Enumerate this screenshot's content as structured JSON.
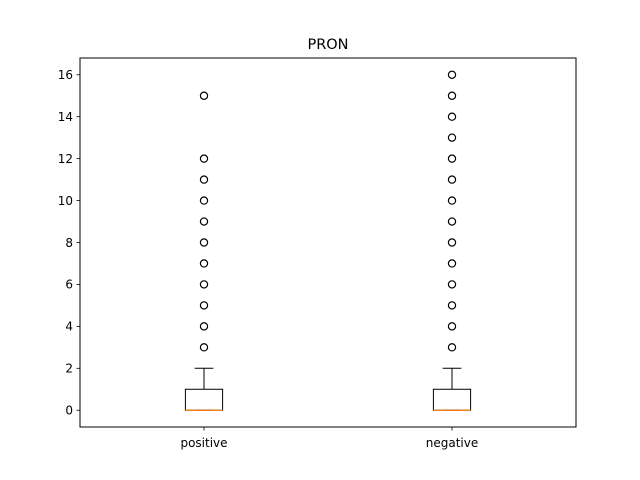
{
  "chart_data": {
    "type": "box",
    "title": "PRON",
    "xlabel": "",
    "ylabel": "",
    "ylim": [
      -0.8,
      16.8
    ],
    "yticks": [
      0,
      2,
      4,
      6,
      8,
      10,
      12,
      14,
      16
    ],
    "categories": [
      "positive",
      "negative"
    ],
    "boxes": [
      {
        "name": "positive",
        "whisker_low": 0,
        "q1": 0,
        "median": 0,
        "q3": 1,
        "whisker_high": 2,
        "outliers": [
          3,
          4,
          5,
          6,
          7,
          8,
          9,
          10,
          11,
          12,
          15
        ]
      },
      {
        "name": "negative",
        "whisker_low": 0,
        "q1": 0,
        "median": 0,
        "q3": 1,
        "whisker_high": 2,
        "outliers": [
          3,
          4,
          5,
          6,
          7,
          8,
          9,
          10,
          11,
          12,
          13,
          14,
          15,
          16
        ]
      }
    ],
    "colors": {
      "box": "#000000",
      "median": "#ff7f0e",
      "outlier_edge": "#000000"
    },
    "grid": false
  }
}
